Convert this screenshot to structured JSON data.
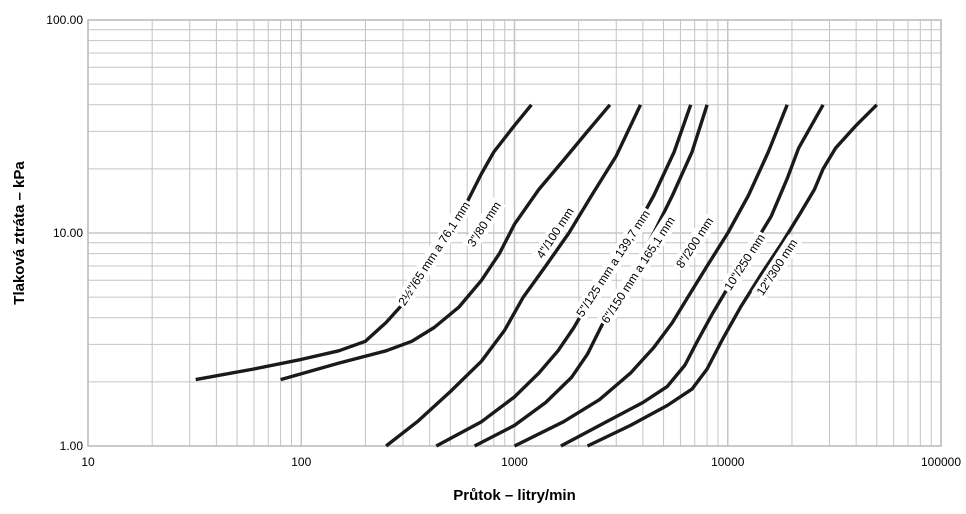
{
  "chart_data": {
    "type": "line",
    "x_scale": "log",
    "y_scale": "log",
    "xlim": [
      10,
      100000
    ],
    "ylim": [
      1,
      100
    ],
    "xlabel": "Průtok – litry/min",
    "ylabel": "Tlaková ztráta – kPa",
    "x_ticks": [
      "10",
      "100",
      "1000",
      "10000",
      "100000"
    ],
    "y_ticks": [
      "1.00",
      "10.00",
      "100.00"
    ],
    "grid": true,
    "series_color": "#1a1a1a",
    "series": [
      {
        "name": "2½\"/65 mm a 76,1 mm",
        "points": [
          [
            32,
            2.05
          ],
          [
            60,
            2.3
          ],
          [
            100,
            2.55
          ],
          [
            150,
            2.8
          ],
          [
            200,
            3.1
          ],
          [
            250,
            3.8
          ],
          [
            320,
            5
          ],
          [
            400,
            7
          ],
          [
            500,
            10
          ],
          [
            600,
            14
          ],
          [
            700,
            19
          ],
          [
            800,
            24
          ],
          [
            1000,
            32
          ],
          [
            1200,
            40
          ]
        ],
        "label_at": [
          420,
          8
        ]
      },
      {
        "name": "3\"/80 mm",
        "points": [
          [
            80,
            2.05
          ],
          [
            150,
            2.45
          ],
          [
            250,
            2.8
          ],
          [
            330,
            3.1
          ],
          [
            420,
            3.6
          ],
          [
            550,
            4.5
          ],
          [
            700,
            6
          ],
          [
            850,
            8
          ],
          [
            1000,
            11
          ],
          [
            1300,
            16
          ],
          [
            1700,
            22
          ],
          [
            2200,
            30
          ],
          [
            2800,
            40
          ]
        ],
        "label_at": [
          720,
          11
        ]
      },
      {
        "name": "4\"/100 mm",
        "points": [
          [
            250,
            1
          ],
          [
            350,
            1.3
          ],
          [
            500,
            1.8
          ],
          [
            700,
            2.5
          ],
          [
            900,
            3.5
          ],
          [
            1100,
            5
          ],
          [
            1400,
            7
          ],
          [
            1800,
            10
          ],
          [
            2300,
            15
          ],
          [
            3000,
            23
          ],
          [
            3900,
            40
          ]
        ],
        "label_at": [
          1550,
          10
        ]
      },
      {
        "name": "5\"/125 mm a 139,7 mm",
        "points": [
          [
            430,
            1
          ],
          [
            700,
            1.3
          ],
          [
            1000,
            1.7
          ],
          [
            1300,
            2.2
          ],
          [
            1600,
            2.8
          ],
          [
            1900,
            3.6
          ],
          [
            2300,
            5
          ],
          [
            2900,
            7
          ],
          [
            3600,
            10
          ],
          [
            4500,
            15
          ],
          [
            5600,
            24
          ],
          [
            6700,
            40
          ]
        ],
        "label_at": [
          2900,
          7.2
        ]
      },
      {
        "name": "6\"/150 mm a 165,1 mm",
        "points": [
          [
            650,
            1
          ],
          [
            1000,
            1.25
          ],
          [
            1400,
            1.6
          ],
          [
            1850,
            2.1
          ],
          [
            2200,
            2.7
          ],
          [
            2500,
            3.5
          ],
          [
            3000,
            5
          ],
          [
            3700,
            7
          ],
          [
            4500,
            10
          ],
          [
            5500,
            15
          ],
          [
            6800,
            24
          ],
          [
            8000,
            40
          ]
        ],
        "label_at": [
          3800,
          6.7
        ]
      },
      {
        "name": "8\"/200 mm",
        "points": [
          [
            1000,
            1
          ],
          [
            1700,
            1.3
          ],
          [
            2500,
            1.65
          ],
          [
            3500,
            2.2
          ],
          [
            4500,
            2.9
          ],
          [
            5500,
            3.8
          ],
          [
            6500,
            5
          ],
          [
            8000,
            7
          ],
          [
            10000,
            10
          ],
          [
            12500,
            15
          ],
          [
            15500,
            24
          ],
          [
            19000,
            40
          ]
        ],
        "label_at": [
          7000,
          9
        ]
      },
      {
        "name": "10\"/250 mm",
        "points": [
          [
            1650,
            1
          ],
          [
            2700,
            1.3
          ],
          [
            4000,
            1.6
          ],
          [
            5200,
            1.9
          ],
          [
            6300,
            2.4
          ],
          [
            7200,
            3.1
          ],
          [
            8500,
            4.2
          ],
          [
            10500,
            6
          ],
          [
            13000,
            8.5
          ],
          [
            16000,
            12
          ],
          [
            19000,
            18
          ],
          [
            21500,
            25
          ],
          [
            28000,
            40
          ]
        ],
        "label_at": [
          12000,
          7.3
        ]
      },
      {
        "name": "12\"/300 mm",
        "points": [
          [
            2200,
            1
          ],
          [
            3500,
            1.25
          ],
          [
            5200,
            1.55
          ],
          [
            6800,
            1.85
          ],
          [
            8000,
            2.3
          ],
          [
            9500,
            3.2
          ],
          [
            11500,
            4.5
          ],
          [
            14500,
            6.5
          ],
          [
            18000,
            9
          ],
          [
            22000,
            12.5
          ],
          [
            25500,
            16
          ],
          [
            28000,
            20
          ],
          [
            32000,
            25
          ],
          [
            40000,
            32
          ],
          [
            50000,
            40
          ]
        ],
        "label_at": [
          17000,
          6.9
        ]
      }
    ]
  }
}
